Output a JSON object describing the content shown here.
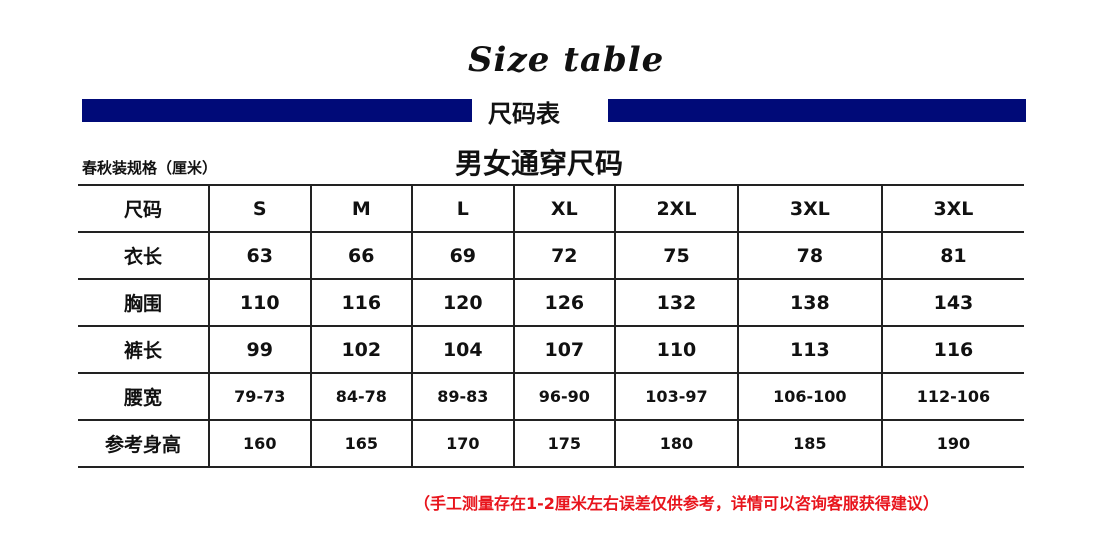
{
  "title_script": "Size table",
  "subtitle": "尺码表",
  "spec_label": "春秋装规格（厘米）",
  "heading": "男女通穿尺码",
  "accent_color": "#000a78",
  "note_color": "#e8141c",
  "table": {
    "header": [
      "尺码",
      "S",
      "M",
      "L",
      "XL",
      "2XL",
      "3XL",
      "3XL"
    ],
    "rows": [
      [
        "衣长",
        "63",
        "66",
        "69",
        "72",
        "75",
        "78",
        "81"
      ],
      [
        "胸围",
        "110",
        "116",
        "120",
        "126",
        "132",
        "138",
        "143"
      ],
      [
        "裤长",
        "99",
        "102",
        "104",
        "107",
        "110",
        "113",
        "116"
      ],
      [
        "腰宽",
        "79-73",
        "84-78",
        "89-83",
        "96-90",
        "103-97",
        "106-100",
        "112-106"
      ],
      [
        "参考身高",
        "160",
        "165",
        "170",
        "175",
        "180",
        "185",
        "190"
      ]
    ]
  },
  "note": "（手工测量存在1-2厘米左右误差仅供参考，详情可以咨询客服获得建议）"
}
